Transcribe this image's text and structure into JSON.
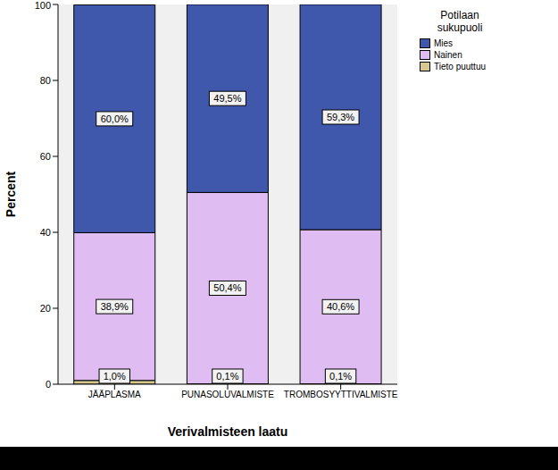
{
  "chart_data": {
    "type": "bar",
    "stacked": true,
    "data_labels": true,
    "grid": false,
    "legend": "upper right",
    "legend_title": "Potilaan sukupuoli",
    "x_label": "Verivalmisteen laatu",
    "y_label": "Percent",
    "categories": [
      "JÄÄPLASMA",
      "PUNASOLUVALMISTE",
      "TROMBOSYYTTIVALMISTE"
    ],
    "ylim": [
      0,
      100
    ],
    "yticks": [
      0,
      20,
      40,
      60,
      80,
      100
    ],
    "series": [
      {
        "name": "Mies",
        "color": "#3f58ac",
        "values": [
          60.0,
          49.5,
          59.3
        ],
        "value_labels": [
          "60,0%",
          "49,5%",
          "59,3%"
        ]
      },
      {
        "name": "Nainen",
        "color": "#dfbdf2",
        "values": [
          38.9,
          50.4,
          40.6
        ],
        "value_labels": [
          "38,9%",
          "50,4%",
          "40,6%"
        ]
      },
      {
        "name": "Tieto puuttuu",
        "color": "#d6c990",
        "values": [
          1.0,
          0.1,
          0.1
        ],
        "value_labels": [
          "1,0%",
          "0,1%",
          "0,1%"
        ]
      }
    ]
  }
}
